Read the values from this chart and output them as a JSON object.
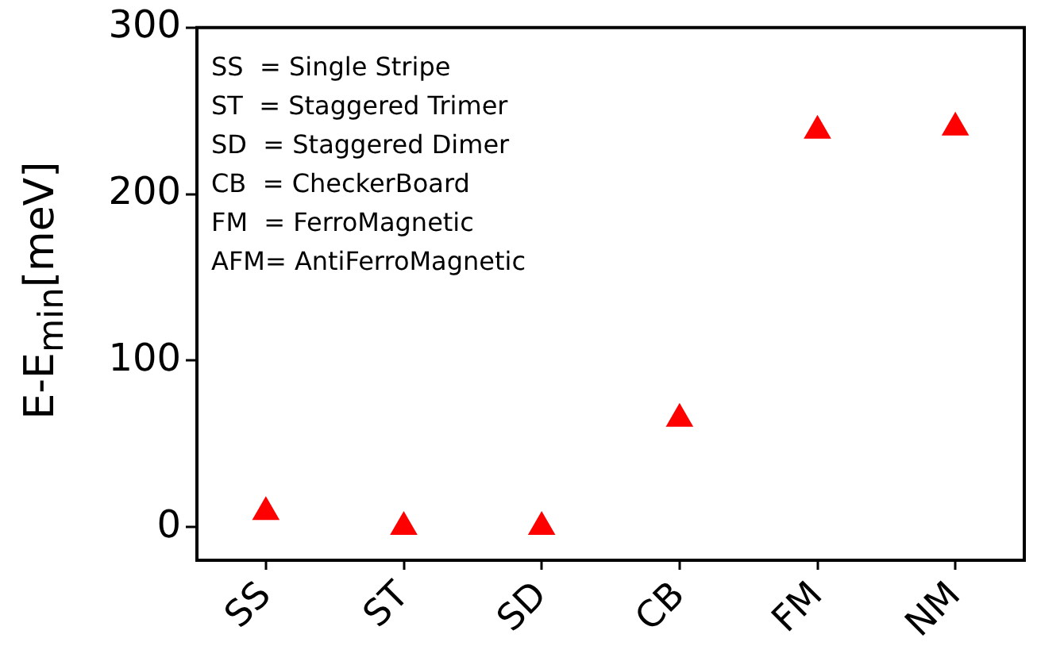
{
  "chart_data": {
    "type": "scatter",
    "ylabel": "E-E$_{min}$[meV]",
    "categories": [
      "SS",
      "ST",
      "SD",
      "CB",
      "FM",
      "NM"
    ],
    "series": [
      {
        "color": "#ff0000",
        "values": [
          9,
          0,
          0,
          65,
          238,
          240
        ]
      }
    ],
    "marker": "triangle",
    "ylim": [
      -20,
      300
    ],
    "yticks": [
      0,
      100,
      200,
      300
    ],
    "grid": false,
    "legend": false,
    "annotations": [
      "SS  = Single Stripe",
      "ST  = Staggered Trimer",
      "SD  = Staggered Dimer",
      "CB  = CheckerBoard",
      "FM  = FerroMagnetic",
      "AFM= AntiFerroMagnetic"
    ]
  }
}
